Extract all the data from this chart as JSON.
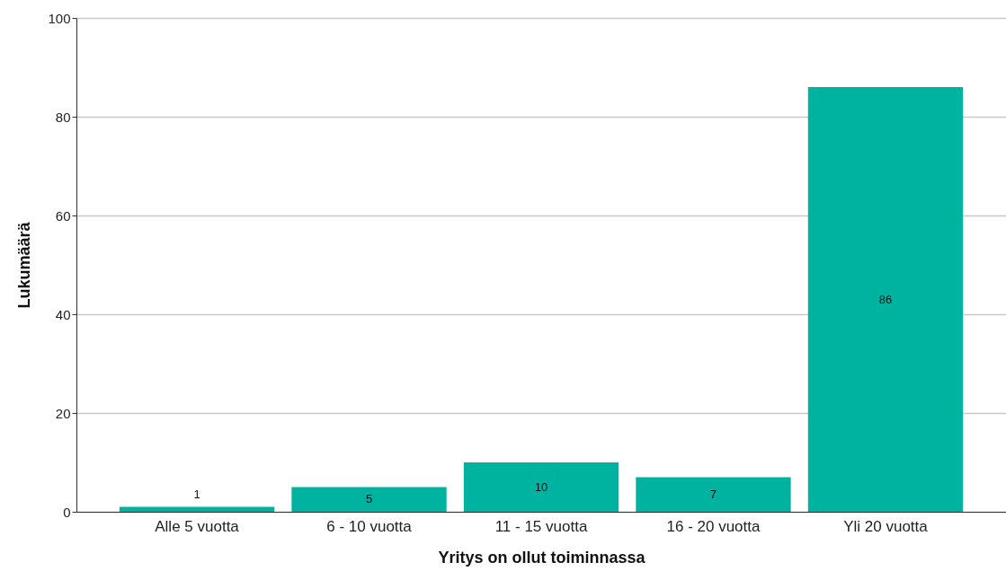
{
  "chart_data": {
    "type": "bar",
    "xlabel": "Yritys on ollut toiminnassa",
    "ylabel": "Lukumäärä",
    "categories": [
      "Alle 5 vuotta",
      "6 - 10 vuotta",
      "11 - 15 vuotta",
      "16 - 20 vuotta",
      "Yli 20 vuotta"
    ],
    "values": [
      1,
      5,
      10,
      7,
      86
    ],
    "color": "#00b3a0",
    "ylim": [
      0,
      100
    ],
    "yticks": [
      0,
      20,
      40,
      60,
      80,
      100
    ],
    "grid": "y",
    "data_labels": true
  }
}
